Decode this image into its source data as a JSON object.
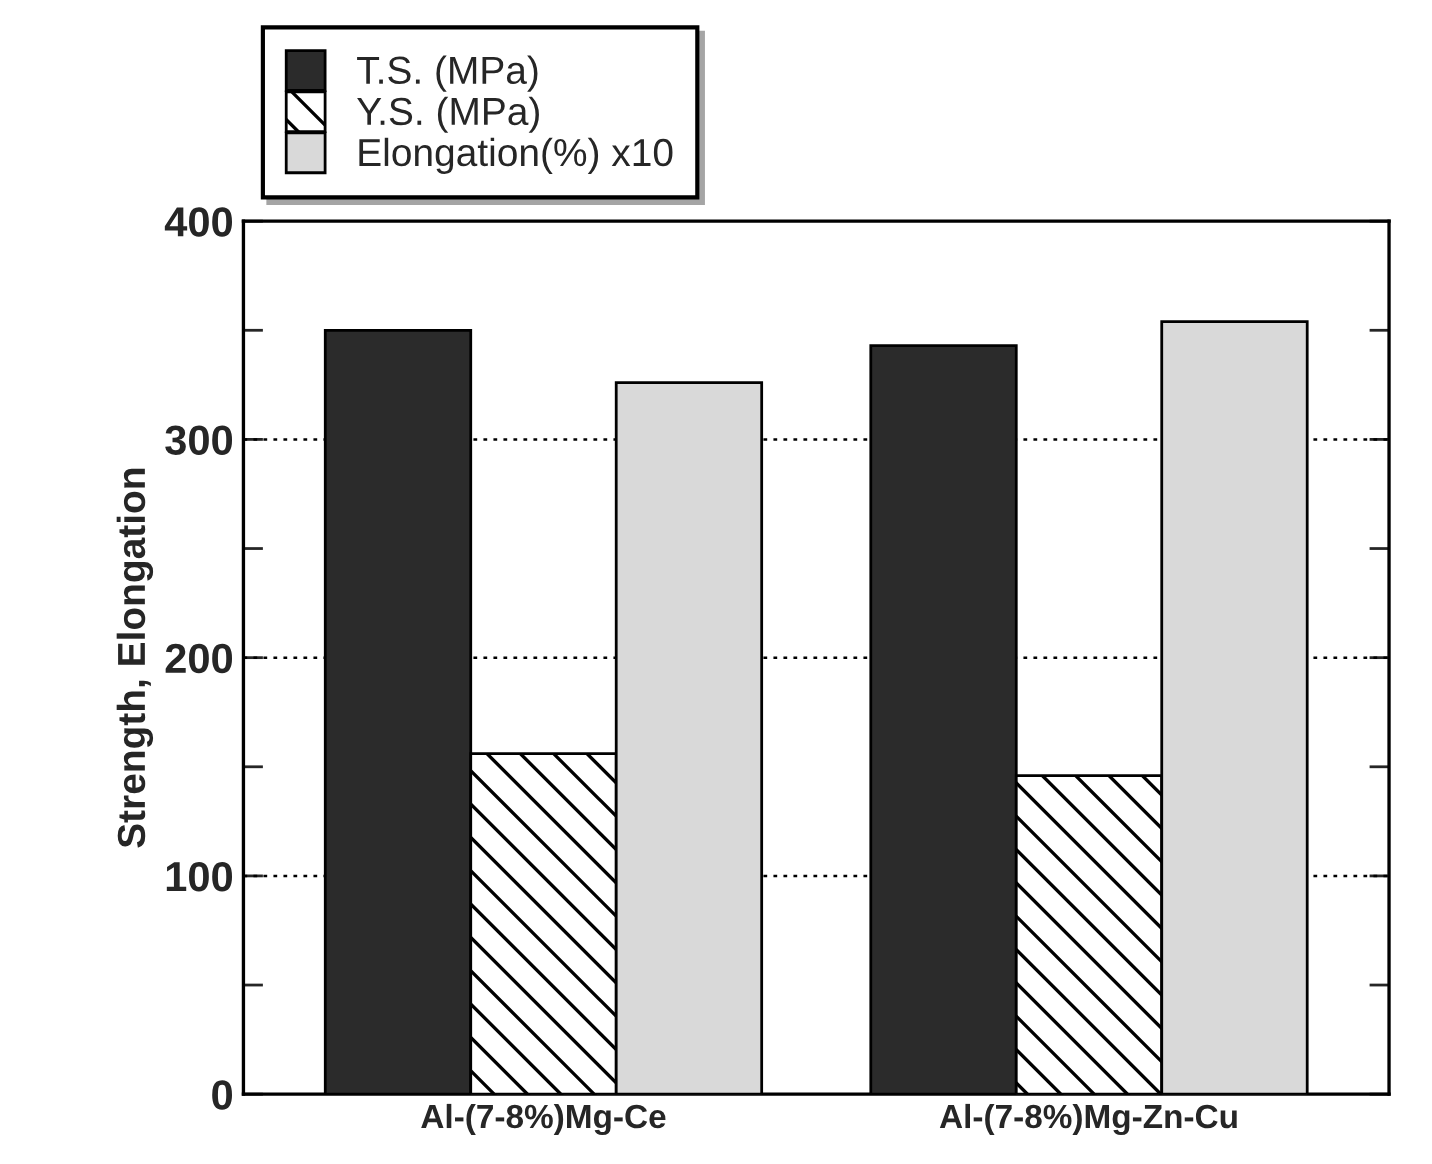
{
  "chart_data": {
    "type": "bar",
    "ylabel": "Strength, Elongation",
    "categories": [
      "Al-(7-8%)Mg-Ce",
      "Al-(7-8%)Mg-Zn-Cu"
    ],
    "series": [
      {
        "name": "T.S. (MPa)",
        "color": "#2b2b2b",
        "values": [
          350,
          343
        ]
      },
      {
        "name": "Y.S. (MPa)",
        "color": "#000000",
        "values": [
          156,
          146
        ]
      },
      {
        "name": "Elongation(%) x10",
        "color": "#d9d9d9",
        "values": [
          326,
          354
        ]
      }
    ],
    "ylim": [
      0,
      400
    ],
    "yticks": [
      0,
      {
        "value": 50,
        "label": null
      },
      100,
      {
        "value": 150,
        "label": null
      },
      200,
      {
        "value": 250,
        "label": null
      },
      300,
      {
        "value": 350,
        "label": null
      },
      400
    ],
    "grid": "y",
    "legend": "top"
  }
}
